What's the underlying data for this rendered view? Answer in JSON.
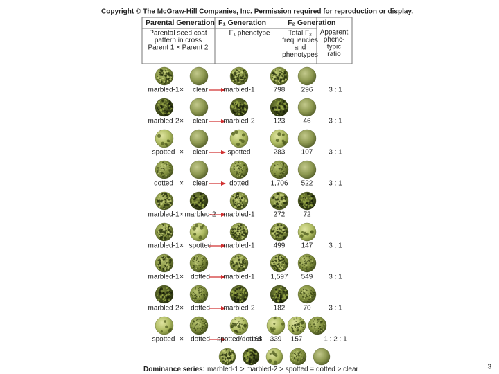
{
  "copyright": "Copyright © The McGraw-Hill Companies, Inc. Permission required for reproduction or display.",
  "header": {
    "columns": [
      {
        "title": "Parental Generation",
        "subtitle_lines": [
          "Parental seed coat",
          "pattern in cross",
          "Parent 1 × Parent 2"
        ]
      },
      {
        "title": "F₁ Generation",
        "subtitle_lines": [
          "F₁ phenotype"
        ]
      },
      {
        "title": "F₂ Generation",
        "subtitle_lines": [
          "Total F₂",
          "frequencies",
          "and",
          "phenotypes"
        ]
      },
      {
        "subtitle_lines": [
          "Apparent",
          "phenc-",
          "typic",
          "ratio"
        ]
      }
    ]
  },
  "cross_symbol": "×",
  "rows": [
    {
      "parent1": "marbled-1",
      "parent2": "clear",
      "f1": "marbled-1",
      "f2": [
        "798",
        "296"
      ],
      "ratio": "3 : 1"
    },
    {
      "parent1": "marbled-2",
      "parent2": "clear",
      "f1": "marbled-2",
      "f2": [
        "123",
        "46"
      ],
      "ratio": "3 : 1"
    },
    {
      "parent1": "spotted",
      "parent2": "clear",
      "f1": "spotted",
      "f2": [
        "283",
        "107"
      ],
      "ratio": "3 : 1"
    },
    {
      "parent1": "dotted",
      "parent2": "clear",
      "f1": "dotted",
      "f2": [
        "1,706",
        "522"
      ],
      "ratio": "3 : 1"
    },
    {
      "parent1": "marbled-1",
      "parent2": "marbled-2",
      "f1": "marbled-1",
      "f2": [
        "272",
        "72"
      ]
    },
    {
      "parent1": "marbled-1",
      "parent2": "spotted",
      "f1": "marbled-1",
      "f2": [
        "499",
        "147"
      ],
      "ratio": "3 : 1"
    },
    {
      "parent1": "marbled-1",
      "parent2": "dotted",
      "f1": "marbled-1",
      "f2": [
        "1,597",
        "549"
      ],
      "ratio": "3 : 1"
    },
    {
      "parent1": "marbled-2",
      "parent2": "dotted",
      "f1": "marbled-2",
      "f2": [
        "182",
        "70"
      ],
      "ratio": "3 : 1"
    },
    {
      "parent1": "spotted",
      "parent2": "dotted",
      "f1": "spotted/dotted",
      "f2": [
        "168",
        "339",
        "157"
      ],
      "ratio": "1 : 2 : 1"
    }
  ],
  "dominance": {
    "label": "Dominance series:",
    "text": "marbled-1 > marbled-2 > spotted = dotted > clear"
  },
  "page_number": "3"
}
